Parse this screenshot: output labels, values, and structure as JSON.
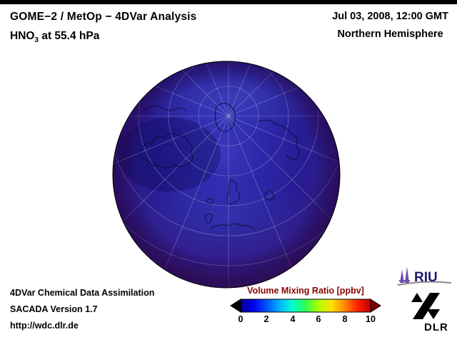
{
  "header": {
    "title": "GOME−2 / MetOp − 4DVar Analysis",
    "subtitle_prefix": "HNO",
    "subtitle_sub": "3",
    "subtitle_suffix": " at 55.4 hPa",
    "datetime": "Jul 03, 2008, 12:00 GMT",
    "region": "Northern Hemisphere"
  },
  "footer": {
    "line1": "4DVar Chemical Data Assimilation",
    "line2": "SACADA Version 1.7",
    "line3": "http://wdc.dlr.de"
  },
  "colorbar": {
    "title": "Volume Mixing Ratio [ppbv]",
    "title_color": "#8b0000",
    "ticks": [
      "0",
      "2",
      "4",
      "6",
      "8",
      "10"
    ],
    "gradient": [
      "#000090",
      "#0000ee",
      "#0055ff",
      "#00b4ff",
      "#00ffd0",
      "#30ff50",
      "#b0ff00",
      "#ffe000",
      "#ff8800",
      "#ff2000",
      "#c00000"
    ],
    "left_arrow_color": "#000000",
    "right_arrow_color": "#7a0000"
  },
  "globe": {
    "gradient": [
      "#3a38bd",
      "#2c27aa",
      "#271c94",
      "#321a84",
      "#402272"
    ]
  },
  "logos": {
    "riu_text": "RIU",
    "dlr_text": "DLR"
  }
}
